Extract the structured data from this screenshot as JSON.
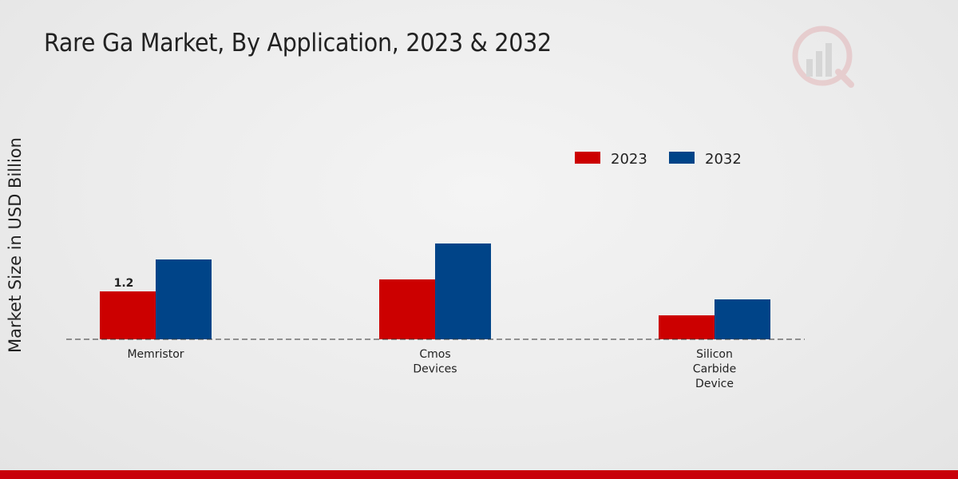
{
  "chart_data": {
    "type": "bar",
    "title": "Rare Ga Market, By Application, 2023 & 2032",
    "ylabel": "Market Size in USD Billion",
    "xlabel": "",
    "categories": [
      [
        "Memristor"
      ],
      [
        "Cmos",
        "Devices"
      ],
      [
        "Silicon",
        "Carbide",
        "Device"
      ]
    ],
    "series": [
      {
        "name": "2023",
        "color": "#cc0000",
        "values": [
          1.2,
          1.5,
          0.6
        ]
      },
      {
        "name": "2032",
        "color": "#004488",
        "values": [
          2.0,
          2.4,
          1.0
        ]
      }
    ],
    "data_labels": [
      {
        "series": 0,
        "index": 0,
        "text": "1.2"
      }
    ],
    "ylim": [
      0,
      5.5
    ],
    "legend_position": "top-right",
    "grid": false,
    "baseline": "dashed"
  }
}
